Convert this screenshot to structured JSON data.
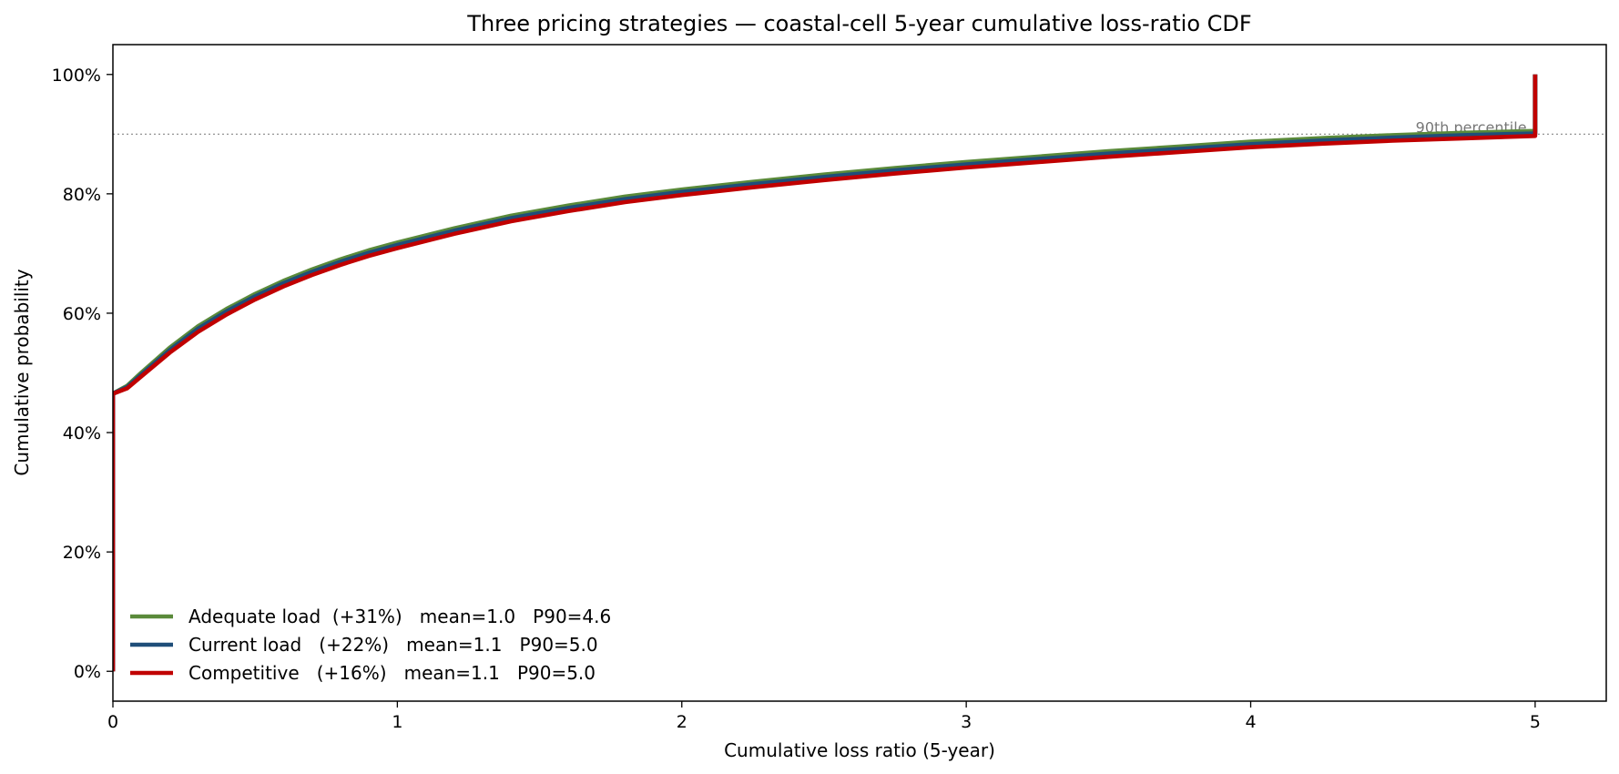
{
  "chart_data": {
    "type": "line",
    "title": "Three pricing strategies — coastal-cell 5-year cumulative loss-ratio CDF",
    "xlabel": "Cumulative loss ratio  (5-year)",
    "ylabel": "Cumulative probability",
    "xlim": [
      0,
      5.25
    ],
    "ylim": [
      -0.05,
      1.05
    ],
    "xticks": [
      0,
      1,
      2,
      3,
      4,
      5
    ],
    "xtick_labels": [
      "0",
      "1",
      "2",
      "3",
      "4",
      "5"
    ],
    "yticks": [
      0,
      0.2,
      0.4,
      0.6,
      0.8,
      1.0
    ],
    "ytick_labels": [
      "0%",
      "20%",
      "40%",
      "60%",
      "80%",
      "100%"
    ],
    "grid": false,
    "legend_position": "lower-left",
    "reference_line": {
      "y": 0.9,
      "label": "90th percentile",
      "style": "dotted",
      "color": "#888888"
    },
    "series": [
      {
        "name": "Adequate load  (+31%)   mean=1.0   P90=4.6",
        "color": "#5a8a3a",
        "x": [
          0,
          0,
          0.05,
          0.1,
          0.2,
          0.3,
          0.4,
          0.5,
          0.6,
          0.7,
          0.8,
          0.9,
          1.0,
          1.2,
          1.4,
          1.6,
          1.8,
          2.0,
          2.25,
          2.5,
          2.75,
          3.0,
          3.25,
          3.5,
          3.75,
          4.0,
          4.25,
          4.5,
          4.75,
          5.0,
          5.0
        ],
        "y": [
          0,
          0.465,
          0.478,
          0.5,
          0.542,
          0.578,
          0.607,
          0.632,
          0.654,
          0.673,
          0.69,
          0.705,
          0.718,
          0.742,
          0.763,
          0.78,
          0.795,
          0.807,
          0.82,
          0.832,
          0.843,
          0.853,
          0.862,
          0.871,
          0.879,
          0.887,
          0.893,
          0.898,
          0.902,
          0.905,
          1.0
        ]
      },
      {
        "name": "Current load   (+22%)   mean=1.1   P90=5.0",
        "color": "#1f4e79",
        "x": [
          0,
          0,
          0.05,
          0.1,
          0.2,
          0.3,
          0.4,
          0.5,
          0.6,
          0.7,
          0.8,
          0.9,
          1.0,
          1.2,
          1.4,
          1.6,
          1.8,
          2.0,
          2.25,
          2.5,
          2.75,
          3.0,
          3.25,
          3.5,
          3.75,
          4.0,
          4.25,
          4.5,
          4.75,
          5.0,
          5.0
        ],
        "y": [
          0,
          0.465,
          0.476,
          0.497,
          0.538,
          0.574,
          0.603,
          0.628,
          0.65,
          0.669,
          0.686,
          0.701,
          0.714,
          0.738,
          0.759,
          0.776,
          0.791,
          0.803,
          0.816,
          0.828,
          0.839,
          0.849,
          0.858,
          0.867,
          0.875,
          0.883,
          0.889,
          0.894,
          0.898,
          0.901,
          1.0
        ]
      },
      {
        "name": "Competitive   (+16%)   mean=1.1   P90=5.0",
        "color": "#c00000",
        "x": [
          0,
          0,
          0.05,
          0.1,
          0.2,
          0.3,
          0.4,
          0.5,
          0.6,
          0.7,
          0.8,
          0.9,
          1.0,
          1.2,
          1.4,
          1.6,
          1.8,
          2.0,
          2.25,
          2.5,
          2.75,
          3.0,
          3.25,
          3.5,
          3.75,
          4.0,
          4.25,
          4.5,
          4.75,
          5.0,
          5.0
        ],
        "y": [
          0,
          0.465,
          0.474,
          0.494,
          0.534,
          0.569,
          0.598,
          0.623,
          0.645,
          0.664,
          0.681,
          0.696,
          0.709,
          0.733,
          0.754,
          0.771,
          0.786,
          0.798,
          0.811,
          0.823,
          0.834,
          0.844,
          0.853,
          0.862,
          0.87,
          0.878,
          0.884,
          0.889,
          0.893,
          0.897,
          1.0
        ]
      }
    ]
  }
}
